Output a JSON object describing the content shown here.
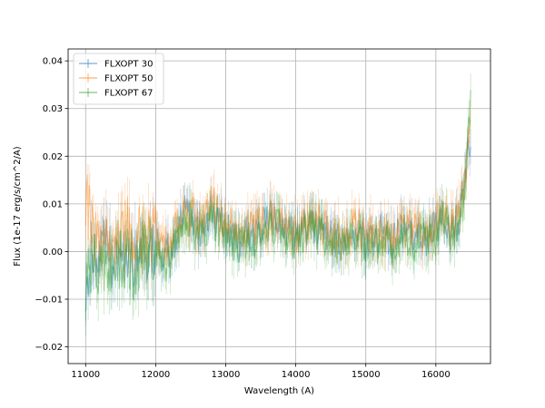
{
  "chart_data": {
    "type": "line",
    "title": "",
    "xlabel": "Wavelength (A)",
    "ylabel": "Flux (1e-17 erg/s/cm^2/A)",
    "xlim": [
      10750,
      16780
    ],
    "ylim": [
      -0.0235,
      0.0425
    ],
    "xticks": [
      11000,
      12000,
      13000,
      14000,
      15000,
      16000
    ],
    "yticks": [
      -0.02,
      -0.01,
      0.0,
      0.01,
      0.02,
      0.03,
      0.04
    ],
    "xtick_labels": [
      "11000",
      "12000",
      "13000",
      "14000",
      "15000",
      "16000"
    ],
    "ytick_labels": [
      "−0.02",
      "−0.01",
      "0.00",
      "0.01",
      "0.02",
      "0.03",
      "0.04"
    ],
    "grid": true,
    "legend": "top-left",
    "error_bars": true,
    "series": [
      {
        "name": "FLXOPT 30",
        "color": "#1f77b4",
        "x": [
          11000,
          11100,
          11200,
          11300,
          11400,
          11500,
          11600,
          11700,
          11800,
          11900,
          12000,
          12100,
          12200,
          12300,
          12400,
          12500,
          12600,
          12700,
          12800,
          12900,
          13000,
          13100,
          13200,
          13300,
          13400,
          13500,
          13600,
          13700,
          13800,
          13900,
          14000,
          14100,
          14200,
          14300,
          14400,
          14500,
          14600,
          14700,
          14800,
          14900,
          15000,
          15100,
          15200,
          15300,
          15400,
          15500,
          15600,
          15700,
          15800,
          15900,
          16000,
          16100,
          16200,
          16300,
          16400,
          16500
        ],
        "y": [
          -0.006,
          0.001,
          -0.003,
          0.002,
          -0.004,
          0.0,
          0.001,
          -0.002,
          0.003,
          0.0,
          0.002,
          -0.001,
          0.0,
          0.004,
          0.008,
          0.007,
          0.004,
          0.006,
          0.009,
          0.006,
          0.004,
          0.003,
          0.002,
          0.004,
          0.003,
          0.005,
          0.006,
          0.007,
          0.005,
          0.004,
          0.003,
          0.004,
          0.006,
          0.005,
          0.004,
          0.003,
          0.002,
          0.003,
          0.004,
          0.004,
          0.002,
          0.003,
          0.004,
          0.003,
          0.002,
          0.004,
          0.004,
          0.003,
          0.003,
          0.004,
          0.004,
          0.008,
          0.005,
          0.006,
          0.012,
          0.026
        ]
      },
      {
        "name": "FLXOPT 50",
        "color": "#ff7f0e",
        "x": [
          11000,
          11100,
          11200,
          11300,
          11400,
          11500,
          11600,
          11700,
          11800,
          11900,
          12000,
          12100,
          12200,
          12300,
          12400,
          12500,
          12600,
          12700,
          12800,
          12900,
          13000,
          13100,
          13200,
          13300,
          13400,
          13500,
          13600,
          13700,
          13800,
          13900,
          14000,
          14100,
          14200,
          14300,
          14400,
          14500,
          14600,
          14700,
          14800,
          14900,
          15000,
          15100,
          15200,
          15300,
          15400,
          15500,
          15600,
          15700,
          15800,
          15900,
          16000,
          16100,
          16200,
          16300,
          16400,
          16500
        ],
        "y": [
          0.012,
          0.004,
          0.002,
          0.001,
          0.003,
          0.004,
          0.005,
          0.002,
          0.004,
          0.002,
          0.003,
          0.001,
          0.002,
          0.005,
          0.009,
          0.008,
          0.006,
          0.007,
          0.011,
          0.008,
          0.006,
          0.005,
          0.004,
          0.005,
          0.004,
          0.006,
          0.007,
          0.008,
          0.006,
          0.005,
          0.004,
          0.005,
          0.007,
          0.006,
          0.005,
          0.004,
          0.003,
          0.004,
          0.005,
          0.005,
          0.003,
          0.004,
          0.005,
          0.004,
          0.003,
          0.005,
          0.005,
          0.004,
          0.004,
          0.005,
          0.005,
          0.009,
          0.006,
          0.007,
          0.013,
          0.029
        ]
      },
      {
        "name": "FLXOPT 67",
        "color": "#2ca02c",
        "x": [
          11000,
          11100,
          11200,
          11300,
          11400,
          11500,
          11600,
          11700,
          11800,
          11900,
          12000,
          12100,
          12200,
          12300,
          12400,
          12500,
          12600,
          12700,
          12800,
          12900,
          13000,
          13100,
          13200,
          13300,
          13400,
          13500,
          13600,
          13700,
          13800,
          13900,
          14000,
          14100,
          14200,
          14300,
          14400,
          14500,
          14600,
          14700,
          14800,
          14900,
          15000,
          15100,
          15200,
          15300,
          15400,
          15500,
          15600,
          15700,
          15800,
          15900,
          16000,
          16100,
          16200,
          16300,
          16400,
          16500
        ],
        "y": [
          -0.008,
          -0.002,
          -0.004,
          -0.001,
          -0.003,
          -0.002,
          -0.001,
          -0.004,
          0.0,
          -0.002,
          0.0,
          -0.003,
          -0.002,
          0.003,
          0.007,
          0.006,
          0.003,
          0.005,
          0.007,
          0.005,
          0.003,
          0.002,
          0.001,
          0.003,
          0.002,
          0.004,
          0.005,
          0.006,
          0.004,
          0.003,
          0.002,
          0.003,
          0.005,
          0.004,
          0.003,
          0.002,
          0.001,
          0.002,
          0.003,
          0.003,
          0.001,
          0.002,
          0.003,
          0.002,
          0.001,
          0.003,
          0.003,
          0.002,
          0.002,
          0.003,
          0.003,
          0.007,
          0.004,
          0.005,
          0.011,
          0.033
        ]
      }
    ]
  }
}
